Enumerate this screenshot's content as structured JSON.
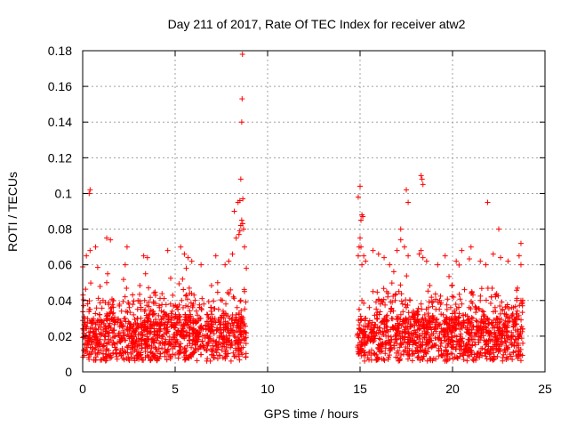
{
  "chart_data": {
    "type": "scatter",
    "title": "Day 211 of 2017, Rate Of TEC Index for receiver atw2",
    "xlabel": "GPS time / hours",
    "ylabel": "ROTI / TECUs",
    "xlim": [
      0,
      25
    ],
    "ylim": [
      0,
      0.18
    ],
    "xticks": [
      0,
      5,
      10,
      15,
      20,
      25
    ],
    "xtick_labels": [
      "0",
      "5",
      "10",
      "15",
      "20",
      "25"
    ],
    "yticks": [
      0,
      0.02,
      0.04,
      0.06,
      0.08,
      0.1,
      0.12,
      0.14,
      0.16,
      0.18
    ],
    "ytick_labels": [
      "0",
      "0.02",
      "0.04",
      "0.06",
      "0.08",
      "0.1",
      "0.12",
      "0.14",
      "0.16",
      "0.18"
    ],
    "grid": true,
    "marker": "plus",
    "marker_color": "#ff0000",
    "series": [
      {
        "x": [
          0.05,
          0.15,
          0.3,
          0.45,
          0.6,
          0.8,
          1.0,
          1.2,
          1.4,
          1.6,
          1.8,
          2.0,
          2.2,
          2.4,
          2.6,
          2.8,
          3.0,
          3.2,
          3.4,
          3.6,
          3.8,
          4.0,
          4.2,
          4.4,
          4.6,
          4.8,
          5.0,
          5.2,
          5.4,
          5.6,
          5.8,
          6.0,
          6.2,
          6.4,
          6.6,
          6.8,
          7.0,
          7.2,
          7.4,
          7.6,
          7.8,
          8.0,
          8.2,
          8.4,
          8.6,
          8.8,
          0.1,
          0.35,
          0.55,
          0.9,
          1.1,
          1.35,
          1.55,
          1.75,
          2.1,
          2.3,
          2.5,
          2.75,
          2.95,
          3.15,
          3.35,
          3.55,
          3.75,
          3.95,
          4.15,
          4.35,
          4.55,
          4.75,
          4.95,
          5.15,
          5.35,
          5.55,
          5.75,
          5.95,
          6.15,
          6.35,
          6.55,
          6.75,
          6.95,
          7.15,
          7.35,
          7.55,
          7.75,
          7.95,
          8.15,
          8.35,
          8.55,
          8.75,
          0.2,
          0.4,
          0.7,
          1.3,
          1.5,
          2.4,
          3.3,
          3.5,
          4.6,
          5.3,
          5.5,
          5.7,
          5.9,
          6.4,
          7.2,
          7.7,
          7.9,
          8.1,
          8.3,
          8.45,
          8.5,
          8.55,
          8.6,
          8.65,
          8.7,
          8.75,
          8.85,
          0.35,
          0.4,
          1.3,
          1.35,
          2.3,
          3.4,
          5.4,
          5.6,
          7.3,
          8.2,
          8.4,
          8.5,
          8.55,
          8.6,
          8.62,
          8.64,
          8.66,
          14.9,
          15.0,
          15.2,
          15.4,
          15.6,
          15.8,
          16.0,
          16.2,
          16.4,
          16.6,
          16.8,
          17.0,
          17.2,
          17.4,
          17.6,
          17.8,
          18.0,
          18.2,
          18.4,
          18.6,
          18.8,
          19.0,
          19.2,
          19.4,
          19.6,
          19.8,
          20.0,
          20.2,
          20.4,
          20.6,
          20.8,
          21.0,
          21.2,
          21.4,
          21.6,
          21.8,
          22.0,
          22.2,
          22.4,
          22.6,
          22.8,
          23.0,
          23.2,
          23.4,
          23.6,
          23.8,
          14.95,
          15.1,
          15.3,
          15.5,
          15.7,
          15.9,
          16.1,
          16.3,
          16.5,
          16.7,
          16.9,
          17.1,
          17.3,
          17.5,
          17.7,
          17.9,
          18.1,
          18.3,
          18.5,
          18.7,
          18.9,
          19.1,
          19.3,
          19.5,
          19.7,
          19.9,
          20.1,
          20.3,
          20.5,
          20.7,
          20.9,
          21.1,
          21.3,
          21.5,
          21.7,
          21.9,
          22.1,
          22.3,
          22.5,
          22.7,
          22.9,
          23.1,
          23.3,
          23.5,
          23.7,
          14.9,
          14.95,
          15.0,
          15.05,
          15.1,
          15.2,
          15.3,
          15.7,
          16.0,
          16.3,
          16.6,
          17.0,
          17.2,
          17.4,
          17.6,
          18.2,
          18.3,
          18.4,
          18.6,
          19.2,
          19.6,
          20.2,
          20.5,
          21.0,
          21.5,
          21.8,
          22.2,
          22.6,
          23.0,
          23.6,
          23.7,
          14.9,
          15.0,
          15.05,
          15.1,
          15.15,
          17.2,
          17.5,
          17.6,
          18.3,
          18.35,
          18.4,
          21.9,
          22.5,
          23.7
        ],
        "y": [
          0.012,
          0.02,
          0.015,
          0.01,
          0.022,
          0.018,
          0.012,
          0.025,
          0.02,
          0.015,
          0.01,
          0.018,
          0.022,
          0.014,
          0.02,
          0.012,
          0.026,
          0.018,
          0.015,
          0.022,
          0.01,
          0.02,
          0.016,
          0.024,
          0.012,
          0.018,
          0.02,
          0.015,
          0.025,
          0.012,
          0.02,
          0.018,
          0.022,
          0.014,
          0.02,
          0.016,
          0.025,
          0.012,
          0.02,
          0.018,
          0.024,
          0.015,
          0.02,
          0.026,
          0.018,
          0.022,
          0.03,
          0.035,
          0.028,
          0.032,
          0.04,
          0.03,
          0.036,
          0.028,
          0.034,
          0.03,
          0.038,
          0.032,
          0.03,
          0.035,
          0.04,
          0.03,
          0.034,
          0.028,
          0.036,
          0.03,
          0.032,
          0.038,
          0.03,
          0.035,
          0.04,
          0.032,
          0.03,
          0.036,
          0.034,
          0.03,
          0.038,
          0.032,
          0.036,
          0.03,
          0.035,
          0.04,
          0.032,
          0.03,
          0.042,
          0.036,
          0.04,
          0.045,
          0.065,
          0.068,
          0.07,
          0.075,
          0.074,
          0.07,
          0.065,
          0.064,
          0.068,
          0.07,
          0.066,
          0.064,
          0.062,
          0.06,
          0.065,
          0.06,
          0.062,
          0.066,
          0.075,
          0.077,
          0.079,
          0.082,
          0.085,
          0.083,
          0.08,
          0.07,
          0.058,
          0.1,
          0.102,
          0.05,
          0.055,
          0.06,
          0.055,
          0.052,
          0.058,
          0.05,
          0.09,
          0.095,
          0.096,
          0.108,
          0.14,
          0.153,
          0.178,
          0.097,
          0.02,
          0.015,
          0.012,
          0.025,
          0.018,
          0.01,
          0.022,
          0.014,
          0.02,
          0.012,
          0.025,
          0.018,
          0.015,
          0.022,
          0.01,
          0.02,
          0.016,
          0.024,
          0.012,
          0.018,
          0.02,
          0.015,
          0.025,
          0.012,
          0.02,
          0.018,
          0.022,
          0.014,
          0.02,
          0.016,
          0.025,
          0.012,
          0.02,
          0.018,
          0.024,
          0.015,
          0.02,
          0.026,
          0.018,
          0.022,
          0.012,
          0.02,
          0.015,
          0.018,
          0.02,
          0.016,
          0.035,
          0.04,
          0.03,
          0.036,
          0.045,
          0.032,
          0.038,
          0.03,
          0.042,
          0.035,
          0.04,
          0.045,
          0.038,
          0.036,
          0.04,
          0.03,
          0.034,
          0.038,
          0.032,
          0.036,
          0.03,
          0.035,
          0.04,
          0.032,
          0.03,
          0.036,
          0.034,
          0.03,
          0.038,
          0.032,
          0.036,
          0.03,
          0.035,
          0.04,
          0.032,
          0.03,
          0.042,
          0.036,
          0.03,
          0.035,
          0.032,
          0.03,
          0.036,
          0.034,
          0.04,
          0.065,
          0.07,
          0.075,
          0.07,
          0.06,
          0.065,
          0.062,
          0.068,
          0.066,
          0.064,
          0.06,
          0.068,
          0.074,
          0.07,
          0.065,
          0.066,
          0.068,
          0.064,
          0.062,
          0.06,
          0.065,
          0.062,
          0.068,
          0.07,
          0.062,
          0.06,
          0.066,
          0.064,
          0.062,
          0.065,
          0.06,
          0.098,
          0.104,
          0.085,
          0.088,
          0.087,
          0.08,
          0.102,
          0.095,
          0.11,
          0.108,
          0.105,
          0.095,
          0.08,
          0.072
        ]
      }
    ]
  }
}
